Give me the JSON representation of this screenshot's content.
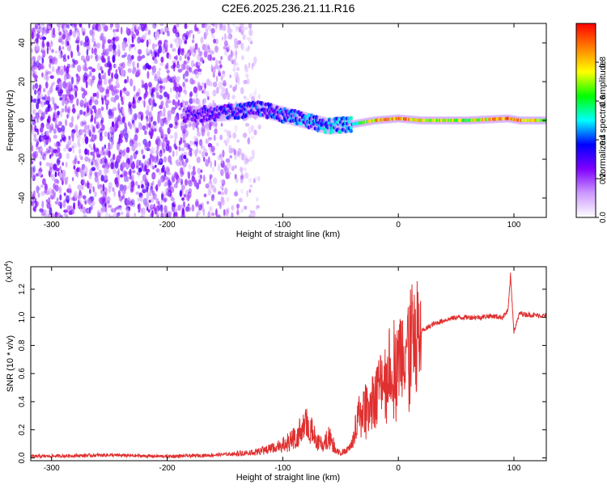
{
  "title": "C2E6.2025.236.21.11.R16",
  "chart_data": [
    {
      "type": "heatmap",
      "xlabel": "Height of straight line (km)",
      "ylabel": "Frequency (Hz)",
      "xlim": [
        -318,
        128
      ],
      "ylim": [
        -50,
        50
      ],
      "x_ticks": [
        -300,
        -200,
        -100,
        0,
        100
      ],
      "x_tick_labels": [
        "-300",
        "-200",
        "-100",
        "0",
        "100"
      ],
      "y_ticks": [
        -40,
        -20,
        0,
        20,
        40
      ],
      "y_tick_labels": [
        "-40",
        "-20",
        "0",
        "20",
        "40"
      ],
      "colorbar": {
        "label": "Normalized spectral amplitude",
        "range": [
          0.0,
          1.0
        ],
        "ticks": [
          0.0,
          0.2,
          0.4,
          0.6,
          0.8
        ],
        "tick_labels": [
          "0.0",
          "0.2",
          "0.4",
          "0.6",
          "0.8"
        ],
        "colors": [
          "#ffffff",
          "#cc99ff",
          "#8000ff",
          "#0000ff",
          "#00ffff",
          "#00ff00",
          "#ffff00",
          "#ff8000",
          "#ff0000"
        ]
      },
      "ridge": [
        {
          "x": -180,
          "f": 3,
          "amp": 0.3
        },
        {
          "x": -150,
          "f": 4,
          "amp": 0.35
        },
        {
          "x": -120,
          "f": 6,
          "amp": 0.4
        },
        {
          "x": -100,
          "f": 3,
          "amp": 0.4
        },
        {
          "x": -80,
          "f": 0,
          "amp": 0.45
        },
        {
          "x": -60,
          "f": -3,
          "amp": 0.45
        },
        {
          "x": -40,
          "f": -2,
          "amp": 0.5
        },
        {
          "x": -20,
          "f": 0,
          "amp": 0.9
        },
        {
          "x": 0,
          "f": 1,
          "amp": 0.95
        },
        {
          "x": 20,
          "f": 0,
          "amp": 0.8
        },
        {
          "x": 60,
          "f": 0,
          "amp": 0.75
        },
        {
          "x": 95,
          "f": 1,
          "amp": 0.95
        },
        {
          "x": 105,
          "f": 0,
          "amp": 0.95
        },
        {
          "x": 128,
          "f": 0,
          "amp": 0.7
        }
      ]
    },
    {
      "type": "line",
      "xlabel": "Height of straight line (km)",
      "ylabel": "SNR (10 * v/v)",
      "y_multiplier": "(x10",
      "y_multiplier_exp": "4",
      "y_multiplier_close": ")",
      "xlim": [
        -318,
        128
      ],
      "ylim": [
        -0.02,
        1.36
      ],
      "x_ticks": [
        -300,
        -200,
        -100,
        0,
        100
      ],
      "x_tick_labels": [
        "-300",
        "-200",
        "-100",
        "0",
        "100"
      ],
      "y_ticks": [
        0.0,
        0.2,
        0.4,
        0.6,
        0.8,
        1.0,
        1.2
      ],
      "y_tick_labels": [
        "0.0",
        "0.2",
        "0.4",
        "0.6",
        "0.8",
        "1.0",
        "1.2"
      ],
      "color": "#e03030",
      "series": [
        {
          "name": "SNR",
          "x": [
            -318,
            -250,
            -200,
            -160,
            -140,
            -120,
            -100,
            -90,
            -80,
            -75,
            -70,
            -65,
            -60,
            -55,
            -50,
            -45,
            -40,
            -35,
            -30,
            -25,
            -20,
            -15,
            -10,
            -5,
            0,
            5,
            10,
            15,
            20,
            30,
            40,
            50,
            60,
            70,
            80,
            90,
            95,
            97,
            100,
            105,
            110,
            128
          ],
          "y": [
            0.01,
            0.02,
            0.01,
            0.02,
            0.03,
            0.05,
            0.1,
            0.15,
            0.25,
            0.2,
            0.12,
            0.1,
            0.18,
            0.08,
            0.04,
            0.05,
            0.1,
            0.3,
            0.35,
            0.4,
            0.45,
            0.55,
            0.6,
            0.7,
            0.75,
            0.8,
            0.85,
            0.88,
            0.9,
            0.95,
            0.98,
            1.0,
            1.0,
            1.0,
            1.01,
            1.0,
            1.05,
            1.3,
            0.9,
            1.03,
            1.02,
            1.01
          ]
        }
      ]
    }
  ]
}
